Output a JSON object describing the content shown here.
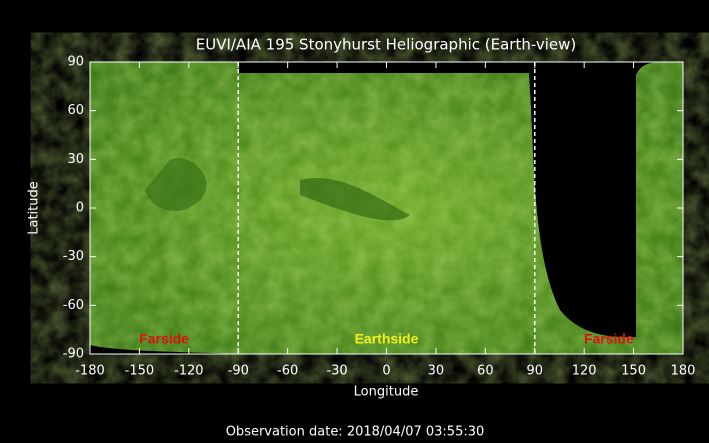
{
  "chart_data": {
    "type": "map-image",
    "title": "EUVI/AIA 195 Stonyhurst Heliographic (Earth-view)",
    "xlabel": "Longitude",
    "ylabel": "Latitude",
    "xlim": [
      -180,
      180
    ],
    "ylim": [
      -90,
      90
    ],
    "xticks": [
      -180,
      -150,
      -120,
      -90,
      -60,
      -30,
      0,
      30,
      60,
      90,
      120,
      150,
      180
    ],
    "yticks": [
      -90,
      -60,
      -30,
      0,
      30,
      60,
      90
    ],
    "vlines": [
      -90,
      90
    ],
    "annotations": [
      {
        "text": "Farside",
        "x": -135,
        "color": "#e01010"
      },
      {
        "text": "Earthside",
        "x": 0,
        "color": "#f0f020"
      },
      {
        "text": "Farside",
        "x": 135,
        "color": "#e01010"
      }
    ],
    "footer": "Observation date: 2018/04/07 03:55:30"
  }
}
